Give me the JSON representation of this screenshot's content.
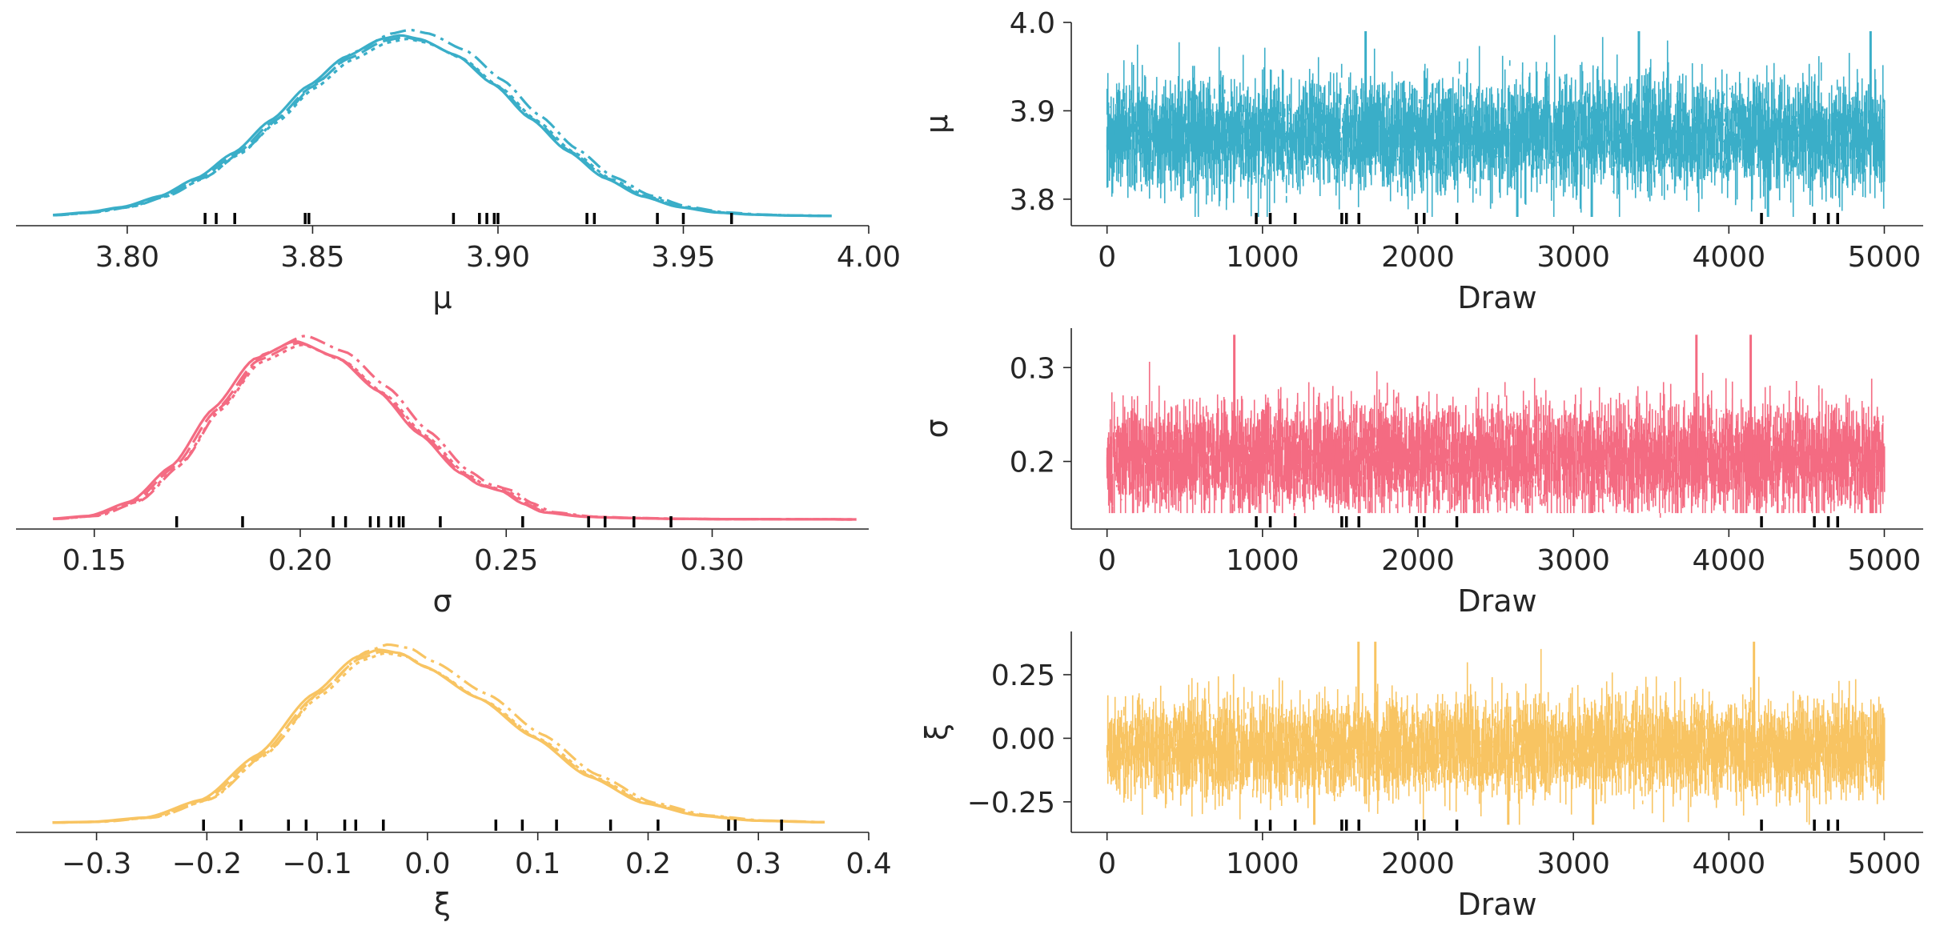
{
  "figure": {
    "layout": "3 rows x 2 columns (KDE left, trace right)",
    "trace_xlabel": "Draw"
  },
  "chart_data": [
    {
      "type": "line",
      "kind": "kde",
      "param": "mu",
      "xlabel": "μ",
      "xlim": [
        3.77,
        4.0
      ],
      "xticks": [
        "3.80",
        "3.85",
        "3.90",
        "3.95",
        "4.00"
      ],
      "xtick_values": [
        3.8,
        3.85,
        3.9,
        3.95,
        4.0
      ],
      "color": "#3aaec8",
      "density": {
        "x": [
          3.78,
          3.79,
          3.8,
          3.81,
          3.82,
          3.83,
          3.84,
          3.85,
          3.86,
          3.87,
          3.875,
          3.88,
          3.89,
          3.9,
          3.91,
          3.92,
          3.93,
          3.94,
          3.95,
          3.96,
          3.97,
          3.98,
          3.99
        ],
        "y": [
          0.005,
          0.02,
          0.05,
          0.11,
          0.21,
          0.35,
          0.53,
          0.72,
          0.88,
          0.98,
          1.0,
          0.98,
          0.89,
          0.73,
          0.54,
          0.36,
          0.21,
          0.11,
          0.05,
          0.02,
          0.008,
          0.003,
          0.001
        ]
      },
      "rug": [
        3.821,
        3.824,
        3.829,
        3.848,
        3.849,
        3.888,
        3.895,
        3.897,
        3.899,
        3.9,
        3.924,
        3.926,
        3.943,
        3.95,
        3.963
      ]
    },
    {
      "type": "line",
      "kind": "trace",
      "param": "mu",
      "ylabel": "μ",
      "xlabel": "Draw",
      "xlim": [
        -230,
        5250
      ],
      "ylim": [
        3.77,
        4.0
      ],
      "xticks": [
        "0",
        "1000",
        "2000",
        "3000",
        "4000",
        "5000"
      ],
      "xtick_values": [
        0,
        1000,
        2000,
        3000,
        4000,
        5000
      ],
      "yticks": [
        "3.8",
        "3.9",
        "4.0"
      ],
      "ytick_values": [
        3.8,
        3.9,
        4.0
      ],
      "color": "#3aaec8",
      "trace": {
        "draws": 5000,
        "center": 3.873,
        "band_low": 3.825,
        "band_high": 3.925,
        "min": 3.78,
        "max": 3.99
      },
      "rug": [
        960,
        1050,
        1210,
        1510,
        1540,
        1620,
        1990,
        2040,
        2250,
        4210,
        4550,
        4640,
        4700
      ]
    },
    {
      "type": "line",
      "kind": "kde",
      "param": "sigma",
      "xlabel": "σ",
      "xlim": [
        0.131,
        0.338
      ],
      "xticks": [
        "0.15",
        "0.20",
        "0.25",
        "0.30"
      ],
      "xtick_values": [
        0.15,
        0.2,
        0.25,
        0.3
      ],
      "color": "#f46b82",
      "density": {
        "x": [
          0.14,
          0.15,
          0.16,
          0.17,
          0.18,
          0.19,
          0.2,
          0.21,
          0.22,
          0.23,
          0.24,
          0.245,
          0.25,
          0.255,
          0.26,
          0.27,
          0.28,
          0.29,
          0.3,
          0.32,
          0.335
        ],
        "y": [
          0.003,
          0.02,
          0.1,
          0.3,
          0.62,
          0.9,
          1.0,
          0.91,
          0.72,
          0.48,
          0.26,
          0.19,
          0.16,
          0.09,
          0.04,
          0.015,
          0.008,
          0.004,
          0.002,
          0.001,
          0.0
        ]
      },
      "rug": [
        0.17,
        0.186,
        0.208,
        0.211,
        0.217,
        0.219,
        0.222,
        0.224,
        0.225,
        0.234,
        0.254,
        0.27,
        0.274,
        0.281,
        0.29
      ]
    },
    {
      "type": "line",
      "kind": "trace",
      "param": "sigma",
      "ylabel": "σ",
      "xlabel": "Draw",
      "xlim": [
        -230,
        5250
      ],
      "ylim": [
        0.128,
        0.342
      ],
      "xticks": [
        "0",
        "1000",
        "2000",
        "3000",
        "4000",
        "5000"
      ],
      "xtick_values": [
        0,
        1000,
        2000,
        3000,
        4000,
        5000
      ],
      "yticks": [
        "0.2",
        "0.3"
      ],
      "ytick_values": [
        0.2,
        0.3
      ],
      "color": "#f46b82",
      "trace": {
        "draws": 5000,
        "center": 0.204,
        "band_low": 0.165,
        "band_high": 0.26,
        "min": 0.145,
        "max": 0.335
      },
      "rug": [
        960,
        1050,
        1210,
        1510,
        1540,
        1620,
        1990,
        2040,
        2250,
        4210,
        4550,
        4640,
        4700
      ]
    },
    {
      "type": "line",
      "kind": "kde",
      "param": "xi",
      "xlabel": "ξ",
      "xlim": [
        -0.373,
        0.4
      ],
      "xticks": [
        "−0.3",
        "−0.2",
        "−0.1",
        "0.0",
        "0.1",
        "0.2",
        "0.3",
        "0.4"
      ],
      "xtick_values": [
        -0.3,
        -0.2,
        -0.1,
        0.0,
        0.1,
        0.2,
        0.3,
        0.4
      ],
      "color": "#f8c462",
      "density": {
        "x": [
          -0.34,
          -0.3,
          -0.25,
          -0.2,
          -0.15,
          -0.1,
          -0.06,
          -0.04,
          -0.02,
          0.0,
          0.05,
          0.1,
          0.15,
          0.2,
          0.25,
          0.3,
          0.36
        ],
        "y": [
          0.001,
          0.005,
          0.03,
          0.13,
          0.38,
          0.72,
          0.93,
          0.97,
          0.95,
          0.88,
          0.7,
          0.48,
          0.26,
          0.11,
          0.04,
          0.012,
          0.003
        ]
      },
      "rug": [
        -0.203,
        -0.169,
        -0.126,
        -0.11,
        -0.075,
        -0.065,
        -0.04,
        0.062,
        0.086,
        0.117,
        0.166,
        0.209,
        0.273,
        0.279,
        0.321
      ]
    },
    {
      "type": "line",
      "kind": "trace",
      "param": "xi",
      "ylabel": "ξ",
      "xlabel": "Draw",
      "xlim": [
        -230,
        5250
      ],
      "ylim": [
        -0.37,
        0.42
      ],
      "xticks": [
        "0",
        "1000",
        "2000",
        "3000",
        "4000",
        "5000"
      ],
      "xtick_values": [
        0,
        1000,
        2000,
        3000,
        4000,
        5000
      ],
      "yticks": [
        "−0.25",
        "0.00",
        "0.25"
      ],
      "ytick_values": [
        -0.25,
        0.0,
        0.25
      ],
      "color": "#f8c462",
      "trace": {
        "draws": 5000,
        "center": -0.04,
        "band_low": -0.17,
        "band_high": 0.13,
        "min": -0.34,
        "max": 0.38
      },
      "rug": [
        960,
        1050,
        1210,
        1510,
        1540,
        1620,
        1990,
        2040,
        2250,
        4210,
        4550,
        4640,
        4700
      ]
    }
  ]
}
